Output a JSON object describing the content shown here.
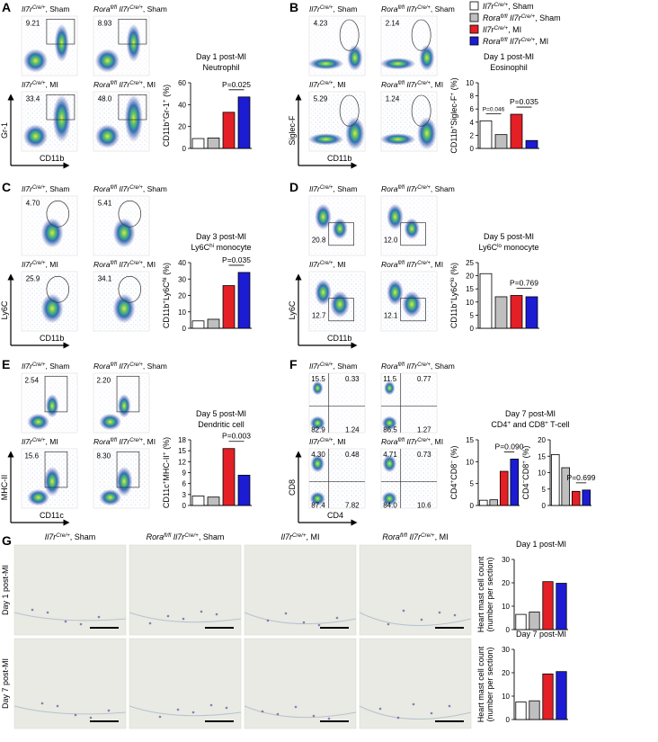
{
  "legend": [
    {
      "name": [
        "Il7r",
        "Cre/+",
        ", Sham"
      ],
      "color": "#ffffff"
    },
    {
      "name": [
        "Rora",
        "fl/fl",
        " Il7r",
        "Cre/+",
        ", Sham"
      ],
      "color": "#bfbfbf"
    },
    {
      "name": [
        "Il7r",
        "Cre/+",
        ", MI"
      ],
      "color": "#e41f26"
    },
    {
      "name": [
        "Rora",
        "fl/fl",
        " Il7r",
        "Cre/+",
        ", MI"
      ],
      "color": "#1c1cd4"
    }
  ],
  "flow": [
    {
      "letter": "A",
      "xlabel": "CD11b",
      "ylabel": "Gr-1",
      "gates": [
        [
          "9.21"
        ],
        [
          "8.93"
        ],
        [
          "33.4"
        ],
        [
          "48.0"
        ]
      ]
    },
    {
      "letter": "B",
      "xlabel": "CD11b",
      "ylabel": "Siglec-F",
      "gates": [
        [
          "4.23"
        ],
        [
          "2.14"
        ],
        [
          "5.29"
        ],
        [
          "1.24"
        ]
      ]
    },
    {
      "letter": "C",
      "xlabel": "CD11b",
      "ylabel": "Ly6C",
      "gates": [
        [
          "4.70"
        ],
        [
          "5.41"
        ],
        [
          "25.9"
        ],
        [
          "34.1"
        ]
      ]
    },
    {
      "letter": "D",
      "xlabel": "CD11b",
      "ylabel": "Ly6C",
      "gates": [
        [
          "20.8"
        ],
        [
          "12.0"
        ],
        [
          "12.7"
        ],
        [
          "12.1"
        ]
      ]
    },
    {
      "letter": "E",
      "xlabel": "CD11c",
      "ylabel": "MHC-II",
      "gates": [
        [
          "2.54"
        ],
        [
          "2.20"
        ],
        [
          "15.6"
        ],
        [
          "8.30"
        ]
      ]
    },
    {
      "letter": "F",
      "xlabel": "CD4",
      "ylabel": "CD8",
      "gates": [
        [
          "15.5",
          "0.33",
          "82.9",
          "1.24"
        ],
        [
          "11.5",
          "0.77",
          "86.5",
          "1.27"
        ],
        [
          "4.30",
          "0.48",
          "87.4",
          "7.82"
        ],
        [
          "4.71",
          "0.73",
          "84.0",
          "10.6"
        ]
      ]
    }
  ],
  "histology": {
    "letter": "G",
    "rows": [
      [
        "Day 1 post-MI"
      ],
      [
        "Day 7 post-MI"
      ]
    ]
  },
  "chart_data": [
    {
      "type": "bar",
      "title": [
        [
          "Day 1 post-MI"
        ],
        [
          "Neutrophil"
        ]
      ],
      "ylabel": [
        [
          "CD11b",
          "+",
          "Gr-1",
          "+",
          " (%)"
        ]
      ],
      "ylim": [
        0,
        60
      ],
      "yticks": [
        0,
        20,
        40,
        60
      ],
      "values": [
        9,
        9.5,
        33,
        47
      ],
      "annotations": [
        "P=0.025"
      ]
    },
    {
      "type": "bar",
      "title": [
        [
          "Day 1 post-MI"
        ],
        [
          "Eosinophil"
        ]
      ],
      "ylabel": [
        [
          "CD11b",
          "+",
          "Siglec-F",
          "+",
          " (%)"
        ]
      ],
      "ylim": [
        0,
        10
      ],
      "yticks": [
        0,
        2,
        4,
        6,
        8,
        10
      ],
      "values": [
        4.2,
        2.1,
        5.2,
        1.2
      ],
      "annotations": [
        "P=0.046",
        "P=0.035"
      ]
    },
    {
      "type": "bar",
      "title": [
        [
          "Day 3 post-MI"
        ],
        [
          "Ly6C",
          "hi",
          " monocyte"
        ]
      ],
      "ylabel": [
        [
          "CD11b",
          "+",
          "Ly6C",
          "hi",
          " (%)"
        ]
      ],
      "ylim": [
        0,
        40
      ],
      "yticks": [
        0,
        10,
        20,
        30,
        40
      ],
      "values": [
        4.5,
        5.5,
        26,
        34
      ],
      "annotations": [
        "P=0.035"
      ]
    },
    {
      "type": "bar",
      "title": [
        [
          "Day 5 post-MI"
        ],
        [
          "Ly6C",
          "lo",
          " monocyte"
        ]
      ],
      "ylabel": [
        [
          "CD11b",
          "+",
          "Ly6C",
          "lo",
          " (%)"
        ]
      ],
      "ylim": [
        0,
        25
      ],
      "yticks": [
        0,
        5,
        10,
        15,
        20,
        25
      ],
      "values": [
        20.8,
        12,
        12.5,
        12
      ],
      "annotations": [
        "P=0.769"
      ]
    },
    {
      "type": "bar",
      "title": [
        [
          "Day 5 post-MI"
        ],
        [
          "Dendritic cell"
        ]
      ],
      "ylabel": [
        [
          "CD11c",
          "+",
          "MHC-II",
          "+",
          " (%)"
        ]
      ],
      "ylim": [
        0,
        18
      ],
      "yticks": [
        0,
        3,
        6,
        9,
        12,
        15,
        18
      ],
      "values": [
        2.6,
        2.3,
        15.6,
        8.3
      ],
      "annotations": [
        "P=0.003"
      ]
    },
    {
      "type": "bar",
      "title": [
        [
          "Day 7 post-MI"
        ],
        [
          "CD4",
          "+",
          " and CD8",
          "+",
          " T-cell"
        ]
      ],
      "ylabel": [
        [
          "CD4",
          "+",
          "CD8",
          "−",
          " (%)"
        ]
      ],
      "ylim": [
        0,
        15
      ],
      "yticks": [
        0,
        5,
        10,
        15
      ],
      "values": [
        1.2,
        1.3,
        7.8,
        10.6
      ],
      "annotations": [
        "P=0.090"
      ]
    },
    {
      "type": "bar",
      "ylabel": [
        [
          "CD4",
          "−",
          "CD8",
          "+",
          " (%)"
        ]
      ],
      "ylim": [
        0,
        20
      ],
      "yticks": [
        0,
        5,
        10,
        15,
        20
      ],
      "values": [
        15.5,
        11.5,
        4.3,
        4.7
      ],
      "annotations": [
        "P=0.699"
      ]
    },
    {
      "type": "bar",
      "title": [
        [
          "Day 1 post-MI"
        ]
      ],
      "ylabel": [
        [
          "Heart mast cell count"
        ],
        [
          "(number per section)"
        ]
      ],
      "ylim": [
        0,
        30
      ],
      "yticks": [
        0,
        10,
        20,
        30
      ],
      "values": [
        6.5,
        7.5,
        20.5,
        19.8
      ]
    },
    {
      "type": "bar",
      "title": [
        [
          "Day 7 post-MI"
        ]
      ],
      "ylabel": [
        [
          "Heart mast cell count"
        ],
        [
          "(number per section)"
        ]
      ],
      "ylim": [
        0,
        30
      ],
      "yticks": [
        0,
        10,
        20,
        30
      ],
      "values": [
        7.5,
        8,
        19.5,
        20.5
      ]
    }
  ]
}
